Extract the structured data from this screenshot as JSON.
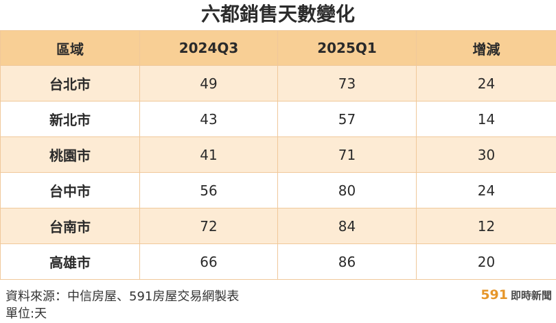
{
  "chart_data": {
    "type": "table",
    "title": "六都銷售天數變化",
    "columns": [
      "區域",
      "2024Q3",
      "2025Q1",
      "增減"
    ],
    "rows": [
      {
        "region": "台北市",
        "q3_2024": 49,
        "q1_2025": 73,
        "change": 24
      },
      {
        "region": "新北市",
        "q3_2024": 43,
        "q1_2025": 57,
        "change": 14
      },
      {
        "region": "桃園市",
        "q3_2024": 41,
        "q1_2025": 71,
        "change": 30
      },
      {
        "region": "台中市",
        "q3_2024": 56,
        "q1_2025": 80,
        "change": 24
      },
      {
        "region": "台南市",
        "q3_2024": 72,
        "q1_2025": 84,
        "change": 12
      },
      {
        "region": "高雄市",
        "q3_2024": 66,
        "q1_2025": 86,
        "change": 20
      }
    ],
    "source": "資料來源：中信房屋、591房屋交易網製表",
    "unit": "單位:天"
  },
  "logo": {
    "number": "591",
    "text": "即時新聞"
  },
  "colors": {
    "header": "#f8cf95",
    "band": "#fdebd4",
    "border": "#f0c89a",
    "accent": "#e6962a"
  }
}
